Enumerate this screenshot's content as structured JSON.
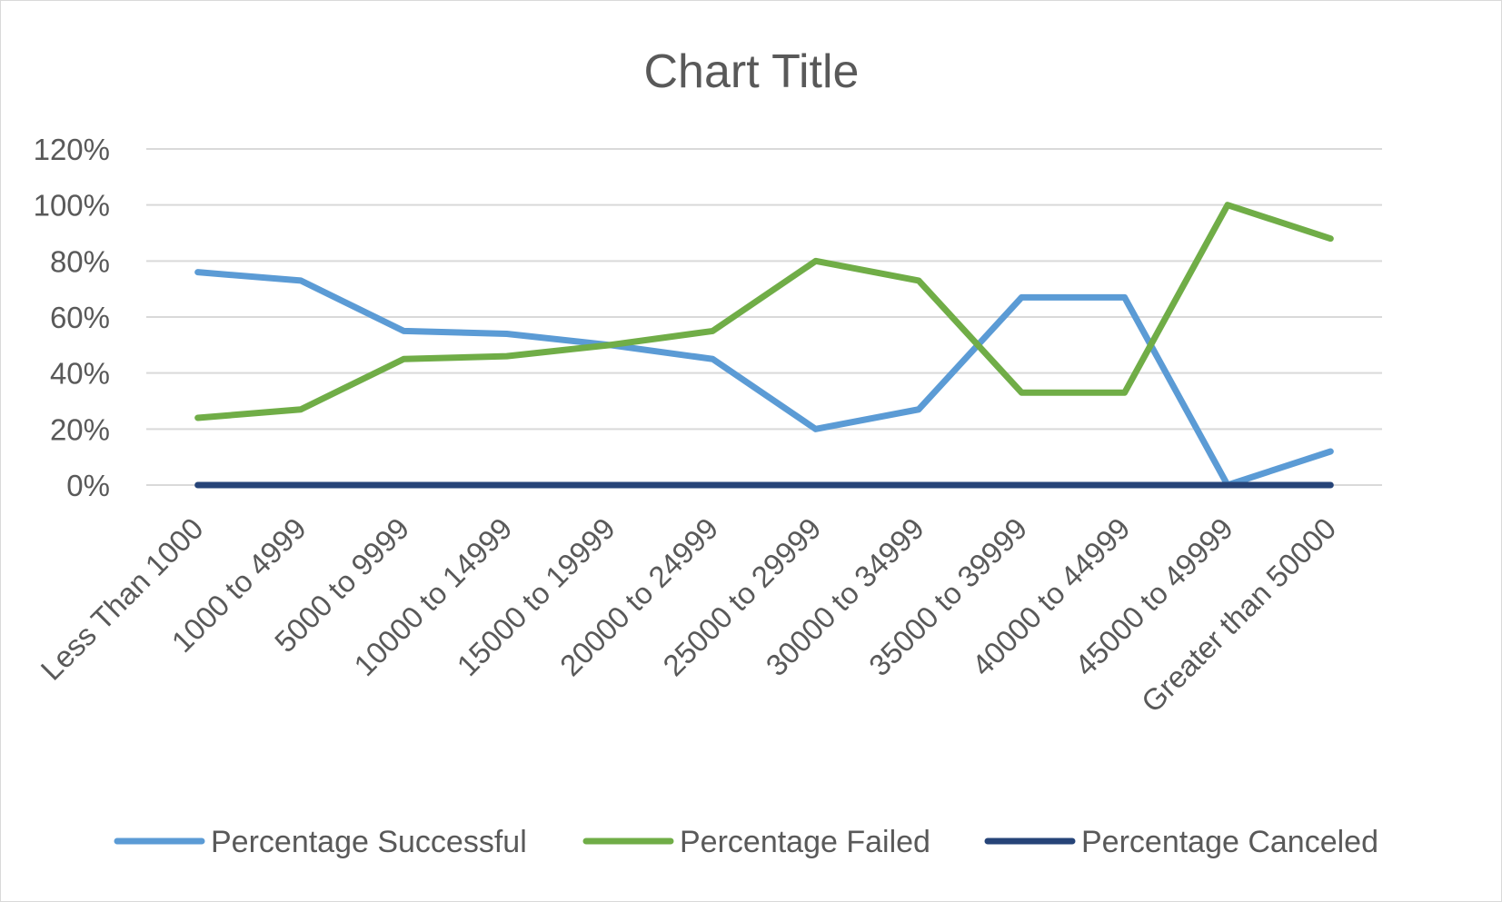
{
  "chart_data": {
    "type": "line",
    "title": "Chart Title",
    "xlabel": "",
    "ylabel": "",
    "categories": [
      "Less Than 1000",
      "1000 to 4999",
      "5000 to 9999",
      "10000 to 14999",
      "15000 to 19999",
      "20000 to 24999",
      "25000 to 29999",
      "30000 to 34999",
      "35000 to 39999",
      "40000 to 44999",
      "45000 to 49999",
      "Greater than 50000"
    ],
    "ylim": [
      0,
      1.2
    ],
    "yticks": [
      0,
      0.2,
      0.4,
      0.6,
      0.8,
      1.0,
      1.2
    ],
    "ytick_labels": [
      "0%",
      "20%",
      "40%",
      "60%",
      "80%",
      "100%",
      "120%"
    ],
    "grid": true,
    "legend_position": "bottom",
    "series": [
      {
        "name": "Percentage Successful",
        "color": "#5b9bd5",
        "values": [
          0.76,
          0.73,
          0.55,
          0.54,
          0.5,
          0.45,
          0.2,
          0.27,
          0.67,
          0.67,
          0.0,
          0.12
        ]
      },
      {
        "name": "Percentage Failed",
        "color": "#70ad47",
        "values": [
          0.24,
          0.27,
          0.45,
          0.46,
          0.5,
          0.55,
          0.8,
          0.73,
          0.33,
          0.33,
          1.0,
          0.88
        ]
      },
      {
        "name": "Percentage Canceled",
        "color": "#264478",
        "values": [
          0,
          0,
          0,
          0,
          0,
          0,
          0,
          0,
          0,
          0,
          0,
          0
        ]
      }
    ]
  }
}
